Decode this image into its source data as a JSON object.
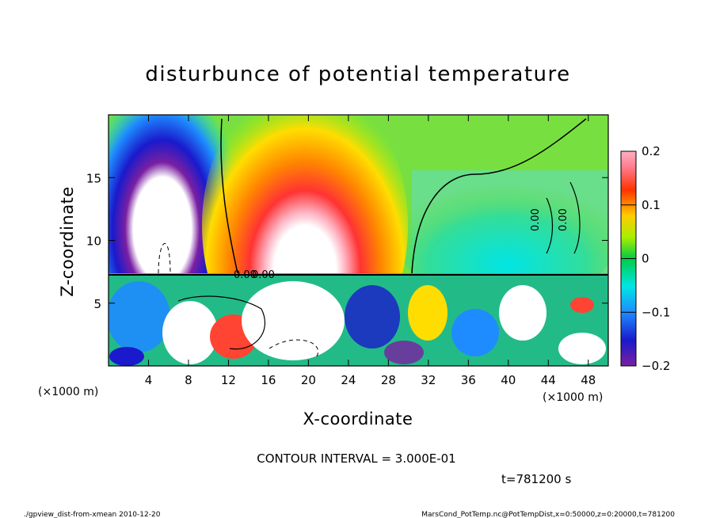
{
  "chart_data": {
    "type": "heatmap",
    "title": "disturbunce of potential temperature",
    "xlabel": "X-coordinate",
    "ylabel": "Z-coordinate",
    "x_unit_label": "(×1000 m)",
    "y_unit_label": "(×1000 m)",
    "xlim": [
      0,
      50
    ],
    "ylim": [
      0,
      20
    ],
    "x_ticks": [
      4,
      8,
      12,
      16,
      20,
      24,
      28,
      32,
      36,
      40,
      44,
      48
    ],
    "y_ticks": [
      5,
      10,
      15
    ],
    "colorbar": {
      "range": [
        -0.2,
        0.2
      ],
      "tick_values": [
        0.2,
        0.1,
        0,
        -0.1,
        -0.2
      ],
      "tick_labels": [
        "0.2",
        "0.1",
        "0",
        "−0.1",
        "−0.2"
      ]
    },
    "contour_labels": [
      "0.00",
      "0.00",
      "0.00",
      "0.00"
    ],
    "contour_interval_text": "CONTOUR INTERVAL = 3.000E-01",
    "time_text": "t=781200 s",
    "footer_left": "./gpview_dist-from-xmean  2010-12-20",
    "footer_right": "MarsCond_PotTemp.nc@PotTempDist,x=0:50000,z=0:20000,t=781200"
  }
}
